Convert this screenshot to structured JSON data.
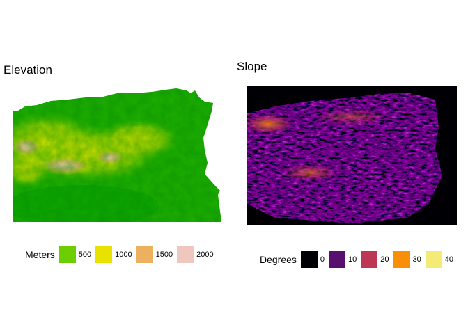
{
  "elevation": {
    "title": "Elevation",
    "legend": {
      "title": "Meters",
      "items": [
        {
          "label": "500",
          "color": "#6ccd00"
        },
        {
          "label": "1000",
          "color": "#e7e200"
        },
        {
          "label": "1500",
          "color": "#ebb15e"
        },
        {
          "label": "2000",
          "color": "#efc7be"
        }
      ]
    },
    "palette": {
      "low": "#00a600",
      "mid": "#63c600",
      "high": "#e6e600",
      "peak": "#ecb176",
      "top": "#f2c9c3"
    }
  },
  "slope": {
    "title": "Slope",
    "legend": {
      "title": "Degrees",
      "items": [
        {
          "label": "0",
          "color": "#000004"
        },
        {
          "label": "10",
          "color": "#57106e"
        },
        {
          "label": "20",
          "color": "#bc3754"
        },
        {
          "label": "30",
          "color": "#f98e09"
        },
        {
          "label": "40",
          "color": "#f4ea76"
        }
      ]
    }
  }
}
